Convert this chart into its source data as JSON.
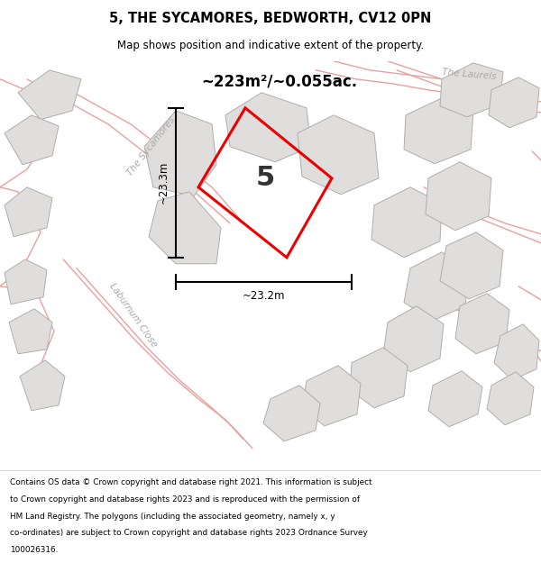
{
  "title": "5, THE SYCAMORES, BEDWORTH, CV12 0PN",
  "subtitle": "Map shows position and indicative extent of the property.",
  "area_text": "~223m²/~0.055ac.",
  "width_label": "~23.2m",
  "height_label": "~23.3m",
  "plot_number": "5",
  "footer_lines": [
    "Contains OS data © Crown copyright and database right 2021. This information is subject",
    "to Crown copyright and database rights 2023 and is reproduced with the permission of",
    "HM Land Registry. The polygons (including the associated geometry, namely x, y",
    "co-ordinates) are subject to Crown copyright and database rights 2023 Ordnance Survey",
    "100026316."
  ],
  "bg_color": "#f2f0ee",
  "title_color": "#000000",
  "red_color": "#ee0000",
  "building_face": "#e0dedd",
  "building_edge": "#b0aeac",
  "road_color": "#e8a0a0",
  "dim_line_color": "#000000",
  "road_label_color": "#aaaaaa",
  "number5_color": "#333333"
}
